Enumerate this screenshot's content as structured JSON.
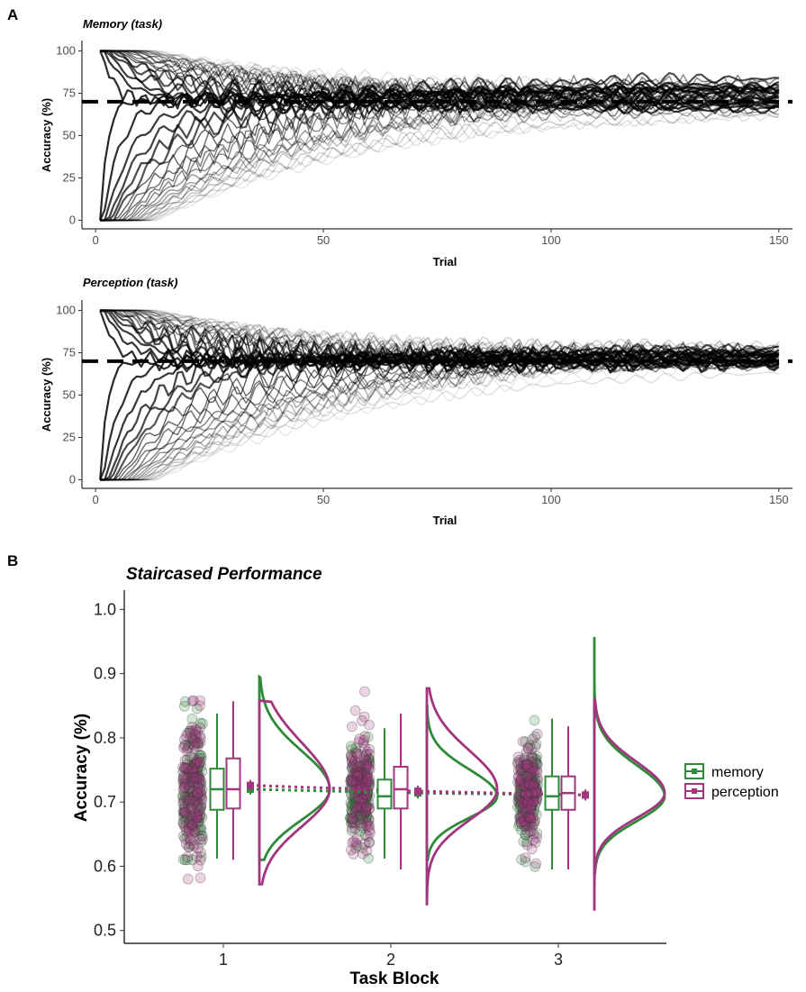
{
  "panels": {
    "a_label": "A",
    "b_label": "B"
  },
  "colors": {
    "memory": "#2e8b3a",
    "perception": "#a2367e",
    "trace": "#000000"
  },
  "chart_data": [
    {
      "type": "line",
      "title": "Memory (task)",
      "xlabel": "Trial",
      "ylabel": "Accuracy (%)",
      "xlim": [
        -3,
        153
      ],
      "ylim": [
        -4,
        104
      ],
      "xticks": [
        0,
        50,
        100,
        150
      ],
      "yticks": [
        0,
        25,
        50,
        75,
        100
      ],
      "reference_line": {
        "y": 70,
        "style": "dashed"
      },
      "n_trials": 150,
      "convergence": {
        "start_values": [
          0,
          100
        ],
        "target": 70,
        "final_range": [
          63,
          84
        ]
      },
      "grid": false
    },
    {
      "type": "line",
      "title": "Perception (task)",
      "xlabel": "Trial",
      "ylabel": "Accuracy (%)",
      "xlim": [
        -3,
        153
      ],
      "ylim": [
        -4,
        104
      ],
      "xticks": [
        0,
        50,
        100,
        150
      ],
      "yticks": [
        0,
        25,
        50,
        75,
        100
      ],
      "reference_line": {
        "y": 70,
        "style": "dashed"
      },
      "n_trials": 150,
      "convergence": {
        "start_values": [
          0,
          100
        ],
        "target": 70,
        "final_range": [
          66,
          78
        ]
      },
      "grid": false
    },
    {
      "type": "raincloud",
      "title": "Staircased Performance",
      "xlabel": "Task Block",
      "ylabel": "Accuracy (%)",
      "categories": [
        "1",
        "2",
        "3"
      ],
      "ylim": [
        0.48,
        1.03
      ],
      "yticks": [
        "0.5",
        "0.6",
        "0.7",
        "0.8",
        "0.9",
        "1.0"
      ],
      "legend_position": "right",
      "series": [
        {
          "name": "memory",
          "mean": [
            0.72,
            0.714,
            0.711
          ],
          "box": [
            {
              "q1": 0.688,
              "median": 0.72,
              "q3": 0.752,
              "whisker_low": 0.612,
              "whisker_high": 0.838
            },
            {
              "q1": 0.69,
              "median": 0.709,
              "q3": 0.735,
              "whisker_low": 0.612,
              "whisker_high": 0.815
            },
            {
              "q1": 0.688,
              "median": 0.709,
              "q3": 0.74,
              "whisker_low": 0.595,
              "whisker_high": 0.83
            }
          ],
          "density_range": [
            [
              0.61,
              0.895
            ],
            [
              0.61,
              0.85
            ],
            [
              0.59,
              0.957
            ]
          ]
        },
        {
          "name": "perception",
          "mean": [
            0.726,
            0.717,
            0.711
          ],
          "box": [
            {
              "q1": 0.69,
              "median": 0.72,
              "q3": 0.768,
              "whisker_low": 0.61,
              "whisker_high": 0.857
            },
            {
              "q1": 0.69,
              "median": 0.72,
              "q3": 0.755,
              "whisker_low": 0.595,
              "whisker_high": 0.838
            },
            {
              "q1": 0.688,
              "median": 0.714,
              "q3": 0.74,
              "whisker_low": 0.595,
              "whisker_high": 0.818
            }
          ],
          "density_range": [
            [
              0.572,
              0.858
            ],
            [
              0.541,
              0.877
            ],
            [
              0.531,
              0.862
            ]
          ]
        }
      ]
    }
  ]
}
